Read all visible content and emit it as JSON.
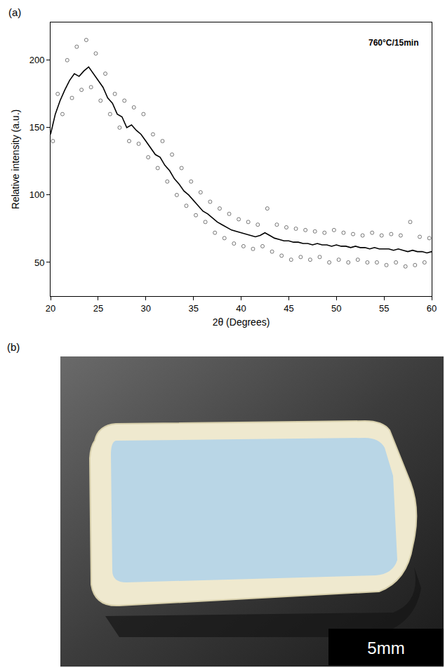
{
  "chart_data": {
    "type": "scatter",
    "panel_label": "(a)",
    "x_label": "2θ (Degrees)",
    "y_label": "Relative intensity (a.u.)",
    "annotations": [
      "760°C/15min"
    ],
    "xlim": [
      20,
      60
    ],
    "xticks": [
      20,
      25,
      30,
      35,
      40,
      45,
      50,
      55,
      60
    ],
    "ylim": [
      25,
      228
    ],
    "yticks": [
      50,
      100,
      150,
      200
    ],
    "grid": false,
    "series": [
      {
        "type": "scatter",
        "marker": "open circle",
        "color": "#555555",
        "x": [
          20.25,
          20.75,
          21.25,
          21.75,
          22.25,
          22.75,
          23.25,
          23.75,
          24.25,
          24.75,
          25.25,
          25.75,
          26.25,
          26.75,
          27.25,
          27.75,
          28.25,
          28.75,
          29.25,
          29.75,
          30.25,
          30.75,
          31.25,
          31.75,
          32.25,
          32.75,
          33.25,
          33.75,
          34.25,
          34.75,
          35.25,
          35.75,
          36.25,
          36.75,
          37.25,
          37.75,
          38.25,
          38.75,
          39.25,
          39.75,
          40.25,
          40.75,
          41.25,
          41.75,
          42.25,
          42.75,
          43.25,
          43.75,
          44.25,
          44.75,
          45.25,
          45.75,
          46.25,
          46.75,
          47.25,
          47.75,
          48.25,
          48.75,
          49.25,
          49.75,
          50.25,
          50.75,
          51.25,
          51.75,
          52.25,
          52.75,
          53.25,
          53.75,
          54.25,
          54.75,
          55.25,
          55.75,
          56.25,
          56.75,
          57.25,
          57.75,
          58.25,
          58.75,
          59.25,
          59.75
        ],
        "values": [
          140,
          175,
          160,
          200,
          172,
          210,
          178,
          215,
          180,
          205,
          170,
          190,
          160,
          175,
          150,
          170,
          140,
          165,
          138,
          160,
          128,
          145,
          120,
          140,
          110,
          130,
          100,
          120,
          92,
          110,
          85,
          102,
          80,
          95,
          72,
          90,
          68,
          86,
          64,
          82,
          62,
          80,
          60,
          78,
          62,
          90,
          58,
          78,
          55,
          76,
          52,
          75,
          54,
          74,
          52,
          73,
          54,
          72,
          50,
          74,
          52,
          72,
          50,
          71,
          52,
          70,
          50,
          72,
          50,
          70,
          48,
          71,
          50,
          70,
          47,
          80,
          48,
          69,
          50,
          68
        ]
      },
      {
        "type": "line",
        "line_style": "solid",
        "color": "#000000",
        "x": [
          20,
          20.5,
          21,
          21.5,
          22,
          22.5,
          23,
          23.5,
          24,
          24.5,
          25,
          25.5,
          26,
          26.5,
          27,
          27.5,
          28,
          28.5,
          29,
          29.5,
          30,
          30.5,
          31,
          31.5,
          32,
          32.5,
          33,
          33.5,
          34,
          34.5,
          35,
          35.5,
          36,
          36.5,
          37,
          37.5,
          38,
          38.5,
          39,
          39.5,
          40,
          40.5,
          41,
          41.5,
          42,
          42.5,
          43,
          43.5,
          44,
          44.5,
          45,
          45.5,
          46,
          46.5,
          47,
          47.5,
          48,
          48.5,
          49,
          49.5,
          50,
          50.5,
          51,
          51.5,
          52,
          52.5,
          53,
          53.5,
          54,
          54.5,
          55,
          55.5,
          56,
          56.5,
          57,
          57.5,
          58,
          58.5,
          59,
          59.5,
          60
        ],
        "values": [
          145,
          160,
          170,
          178,
          185,
          190,
          188,
          192,
          195,
          190,
          185,
          180,
          172,
          168,
          160,
          158,
          150,
          152,
          148,
          145,
          140,
          135,
          130,
          128,
          122,
          118,
          112,
          108,
          103,
          100,
          96,
          92,
          88,
          86,
          83,
          80,
          78,
          76,
          74,
          73,
          72,
          71,
          70,
          69,
          70,
          72,
          70,
          68,
          67,
          66,
          66,
          65,
          65,
          64,
          64,
          63,
          64,
          63,
          63,
          62,
          63,
          62,
          62,
          61,
          62,
          61,
          61,
          60,
          61,
          60,
          60,
          60,
          59,
          60,
          59,
          58,
          59,
          58,
          58,
          57,
          58
        ]
      }
    ]
  },
  "photo": {
    "panel_label": "(b)",
    "scale_bar_label": "5mm"
  }
}
